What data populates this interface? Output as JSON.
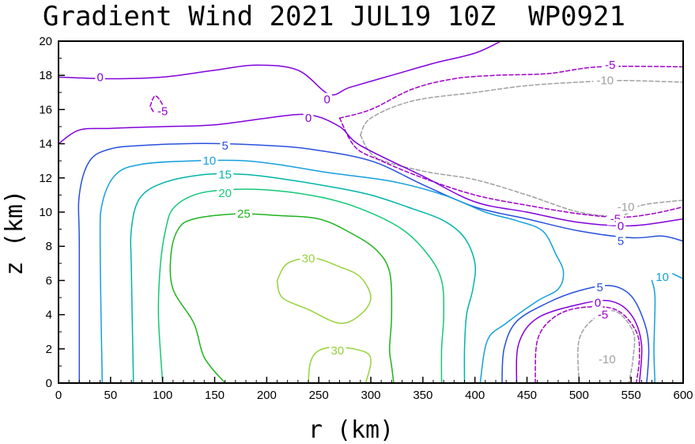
{
  "chart_data": {
    "type": "contour",
    "title": "Gradient Wind 2021 JUL19 10Z  WP0921",
    "xlabel": "r (km)",
    "ylabel": "z (km)",
    "xlim": [
      0,
      600
    ],
    "ylim": [
      0,
      20
    ],
    "x_ticks": [
      "0",
      "50",
      "100",
      "150",
      "200",
      "250",
      "300",
      "350",
      "400",
      "450",
      "500",
      "550",
      "600"
    ],
    "y_ticks": [
      "0",
      "2",
      "4",
      "6",
      "8",
      "10",
      "12",
      "14",
      "16",
      "18",
      "20"
    ],
    "contour_interval": 5,
    "levels": [
      {
        "level": -10,
        "color": "#a0a0a0",
        "dashed": true,
        "paths": [
          [
            [
              290,
              14.5
            ],
            [
              300,
              15.5
            ],
            [
              340,
              16.5
            ],
            [
              400,
              17.0
            ],
            [
              450,
              17.4
            ],
            [
              500,
              17.6
            ],
            [
              540,
              17.7
            ],
            [
              600,
              17.6
            ]
          ],
          [
            [
              290,
              14.5
            ],
            [
              305,
              13.2
            ],
            [
              350,
              12.4
            ],
            [
              400,
              11.9
            ],
            [
              450,
              11.0
            ],
            [
              500,
              10.0
            ],
            [
              540,
              9.8
            ],
            [
              560,
              10.4
            ],
            [
              600,
              10.7
            ]
          ],
          [
            [
              500,
              0
            ],
            [
              500,
              2.5
            ],
            [
              515,
              3.8
            ],
            [
              535,
              4.2
            ],
            [
              552,
              3.0
            ],
            [
              552,
              1.5
            ],
            [
              548,
              0
            ]
          ]
        ],
        "labels": [
          {
            "text": "-10",
            "x": 525,
            "y": 17.7
          },
          {
            "text": "-10",
            "x": 545,
            "y": 10.3
          },
          {
            "text": "-10",
            "x": 527,
            "y": 1.4
          }
        ]
      },
      {
        "level": -5,
        "color": "#a000c8",
        "dashed": true,
        "paths": [
          [
            [
              270,
              15.5
            ],
            [
              300,
              16.0
            ],
            [
              340,
              17.2
            ],
            [
              380,
              17.8
            ],
            [
              420,
              18.0
            ],
            [
              470,
              18.1
            ],
            [
              520,
              18.5
            ],
            [
              600,
              18.5
            ]
          ],
          [
            [
              270,
              15.5
            ],
            [
              285,
              13.8
            ],
            [
              310,
              13.0
            ],
            [
              350,
              12.0
            ],
            [
              400,
              11.0
            ],
            [
              450,
              10.4
            ],
            [
              500,
              9.9
            ],
            [
              540,
              9.7
            ],
            [
              570,
              9.9
            ],
            [
              600,
              10.3
            ]
          ],
          [
            [
              88,
              16.2
            ],
            [
              93,
              16.8
            ],
            [
              100,
              16.2
            ],
            [
              93,
              15.8
            ],
            [
              88,
              16.2
            ]
          ],
          [
            [
              458,
              0
            ],
            [
              460,
              2.5
            ],
            [
              475,
              3.8
            ],
            [
              500,
              4.4
            ],
            [
              535,
              4.3
            ],
            [
              555,
              3.0
            ],
            [
              558,
              1.5
            ],
            [
              555,
              0
            ]
          ]
        ],
        "labels": [
          {
            "text": "-5",
            "x": 530,
            "y": 18.6
          },
          {
            "text": "-5",
            "x": 100,
            "y": 15.9
          },
          {
            "text": "-5",
            "x": 535,
            "y": 9.6
          },
          {
            "text": "-5",
            "x": 523,
            "y": 4.0
          }
        ]
      },
      {
        "level": 0,
        "color": "#8200dc",
        "dashed": false,
        "paths": [
          [
            [
              0,
              17.9
            ],
            [
              50,
              17.8
            ],
            [
              100,
              17.9
            ],
            [
              150,
              18.3
            ],
            [
              190,
              18.6
            ],
            [
              230,
              18.3
            ],
            [
              260,
              16.9
            ],
            [
              280,
              17.3
            ],
            [
              320,
              18.0
            ],
            [
              360,
              18.7
            ],
            [
              400,
              19.3
            ],
            [
              425,
              20.0
            ]
          ],
          [
            [
              0,
              14.0
            ],
            [
              20,
              14.8
            ],
            [
              50,
              14.9
            ],
            [
              100,
              15.0
            ],
            [
              150,
              15.1
            ],
            [
              200,
              15.5
            ],
            [
              240,
              15.7
            ],
            [
              270,
              15.0
            ],
            [
              290,
              13.9
            ],
            [
              350,
              12.1
            ],
            [
              400,
              10.6
            ],
            [
              450,
              10.0
            ],
            [
              500,
              9.4
            ],
            [
              550,
              9.2
            ],
            [
              600,
              9.6
            ]
          ],
          [
            [
              440,
              0
            ],
            [
              442,
              2.3
            ],
            [
              460,
              3.8
            ],
            [
              500,
              4.6
            ],
            [
              530,
              4.8
            ],
            [
              550,
              4.0
            ],
            [
              560,
              2.3
            ],
            [
              558,
              0
            ]
          ]
        ],
        "labels": [
          {
            "text": "0",
            "x": 40,
            "y": 17.9
          },
          {
            "text": "0",
            "x": 258,
            "y": 16.6
          },
          {
            "text": "0",
            "x": 240,
            "y": 15.5
          },
          {
            "text": "0",
            "x": 540,
            "y": 9.2
          },
          {
            "text": "0",
            "x": 518,
            "y": 4.7
          }
        ]
      },
      {
        "level": 5,
        "color": "#2850dc",
        "dashed": false,
        "paths": [
          [
            [
              20,
              0
            ],
            [
              20,
              8
            ],
            [
              20,
              11
            ],
            [
              30,
              13
            ],
            [
              50,
              13.7
            ],
            [
              80,
              13.9
            ],
            [
              120,
              14.0
            ],
            [
              160,
              14.0
            ],
            [
              200,
              13.9
            ],
            [
              240,
              13.7
            ],
            [
              300,
              13.0
            ],
            [
              350,
              11.6
            ],
            [
              400,
              10.3
            ],
            [
              450,
              9.6
            ],
            [
              500,
              8.9
            ],
            [
              550,
              8.5
            ],
            [
              580,
              8.6
            ],
            [
              600,
              8.3
            ]
          ],
          [
            [
              426,
              0
            ],
            [
              428,
              2.0
            ],
            [
              440,
              3.6
            ],
            [
              470,
              4.7
            ],
            [
              500,
              5.4
            ],
            [
              530,
              5.7
            ],
            [
              550,
              5.1
            ],
            [
              563,
              3.5
            ],
            [
              567,
              2.0
            ],
            [
              565,
              0
            ]
          ]
        ],
        "labels": [
          {
            "text": "5",
            "x": 160,
            "y": 13.9
          },
          {
            "text": "5",
            "x": 540,
            "y": 8.3
          },
          {
            "text": "5",
            "x": 520,
            "y": 5.6
          }
        ]
      },
      {
        "level": 10,
        "color": "#14a0dc",
        "dashed": false,
        "paths": [
          [
            [
              42,
              0
            ],
            [
              40,
              8
            ],
            [
              42,
              10.5
            ],
            [
              55,
              12.2
            ],
            [
              80,
              12.8
            ],
            [
              130,
              13.0
            ],
            [
              180,
              13.0
            ],
            [
              220,
              12.7
            ],
            [
              260,
              12.3
            ],
            [
              320,
              11.8
            ],
            [
              370,
              11.0
            ],
            [
              410,
              10.0
            ],
            [
              440,
              9.5
            ],
            [
              465,
              8.9
            ],
            [
              478,
              7.5
            ],
            [
              485,
              6.5
            ],
            [
              480,
              5.5
            ],
            [
              460,
              4.8
            ],
            [
              430,
              3.5
            ],
            [
              412,
              2.5
            ],
            [
              405,
              0
            ]
          ],
          [
            [
              573,
              0
            ],
            [
              572,
              2.0
            ],
            [
              573,
              5.0
            ],
            [
              570,
              6.0
            ]
          ],
          [
            [
              600,
              6.1
            ],
            [
              590,
              6.4
            ]
          ]
        ],
        "labels": [
          {
            "text": "10",
            "x": 145,
            "y": 13.0
          },
          {
            "text": "10",
            "x": 580,
            "y": 6.2
          }
        ]
      },
      {
        "level": 15,
        "color": "#00b4aa",
        "dashed": false,
        "paths": [
          [
            [
              72,
              0
            ],
            [
              70,
              6.5
            ],
            [
              70,
              9.0
            ],
            [
              78,
              10.8
            ],
            [
              100,
              11.7
            ],
            [
              140,
              12.2
            ],
            [
              180,
              12.2
            ],
            [
              220,
              11.9
            ],
            [
              260,
              11.5
            ],
            [
              300,
              11.0
            ],
            [
              340,
              10.2
            ],
            [
              370,
              9.5
            ],
            [
              390,
              8.5
            ],
            [
              400,
              7.0
            ],
            [
              398,
              5.5
            ],
            [
              392,
              4.0
            ],
            [
              390,
              2.0
            ],
            [
              390,
              0
            ]
          ]
        ],
        "labels": [
          {
            "text": "15",
            "x": 160,
            "y": 12.2
          }
        ]
      },
      {
        "level": 20,
        "color": "#14c878",
        "dashed": false,
        "paths": [
          [
            [
              100,
              0
            ],
            [
              96,
              4.0
            ],
            [
              98,
              7.0
            ],
            [
              103,
              9.0
            ],
            [
              110,
              10.2
            ],
            [
              130,
              11.0
            ],
            [
              160,
              11.3
            ],
            [
              200,
              11.3
            ],
            [
              250,
              10.9
            ],
            [
              290,
              10.2
            ],
            [
              330,
              9.0
            ],
            [
              355,
              7.5
            ],
            [
              368,
              6.0
            ],
            [
              370,
              4.0
            ],
            [
              368,
              2.0
            ],
            [
              368,
              0
            ]
          ]
        ],
        "labels": [
          {
            "text": "20",
            "x": 160,
            "y": 11.1
          }
        ]
      },
      {
        "level": 25,
        "color": "#1eb41e",
        "dashed": false,
        "paths": [
          [
            [
              160,
              0
            ],
            [
              140,
              1.5
            ],
            [
              130,
              3.5
            ],
            [
              110,
              5.5
            ],
            [
              108,
              7.5
            ],
            [
              115,
              9.0
            ],
            [
              130,
              9.6
            ],
            [
              170,
              9.9
            ],
            [
              210,
              9.8
            ],
            [
              250,
              9.6
            ],
            [
              280,
              8.8
            ],
            [
              305,
              7.8
            ],
            [
              318,
              6.5
            ],
            [
              320,
              4.0
            ],
            [
              318,
              2.0
            ],
            [
              320,
              1.0
            ],
            [
              322,
              0
            ]
          ]
        ],
        "labels": [
          {
            "text": "25",
            "x": 178,
            "y": 9.9
          }
        ]
      },
      {
        "level": 30,
        "color": "#96d23c",
        "dashed": false,
        "paths": [
          [
            [
              210,
              6.0
            ],
            [
              220,
              7.0
            ],
            [
              245,
              7.3
            ],
            [
              270,
              6.8
            ],
            [
              290,
              6.2
            ],
            [
              300,
              5.0
            ],
            [
              290,
              4.0
            ],
            [
              270,
              3.5
            ],
            [
              240,
              4.3
            ],
            [
              215,
              5.0
            ],
            [
              210,
              6.0
            ]
          ],
          [
            [
              240,
              0
            ],
            [
              242,
              1.2
            ],
            [
              250,
              1.9
            ],
            [
              270,
              2.1
            ],
            [
              295,
              1.8
            ],
            [
              300,
              1.2
            ],
            [
              295,
              0
            ]
          ]
        ],
        "labels": [
          {
            "text": "30",
            "x": 240,
            "y": 7.3
          },
          {
            "text": "30",
            "x": 268,
            "y": 1.9
          }
        ]
      }
    ]
  }
}
